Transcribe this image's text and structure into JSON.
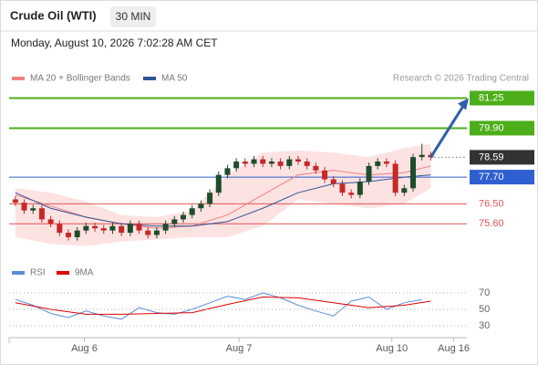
{
  "chart_data": {
    "type": "candlestick",
    "title": "Crude Oil (WTI)",
    "interval": "30 MIN",
    "datetime": "Monday, August 10, 2026 7:02:28 AM CET",
    "credit": "Research © 2026 Trading Central",
    "xlim": [
      -0.5,
      51.5
    ],
    "xticks": [
      {
        "value": 7.8,
        "label": "Aug 6"
      },
      {
        "value": 25.3,
        "label": "Aug 7"
      },
      {
        "value": 42.6,
        "label": "Aug 10"
      },
      {
        "value": 49.6,
        "label": "Aug 16"
      }
    ],
    "ylim": [
      74.3,
      81.6
    ],
    "up_color": "#1e4d2b",
    "down_color": "#c62828",
    "open": [
      76.7,
      76.55,
      76.2,
      76.3,
      75.8,
      75.6,
      75.2,
      75.0,
      75.3,
      75.5,
      75.4,
      75.3,
      75.5,
      75.2,
      75.6,
      75.3,
      75.1,
      75.3,
      75.6,
      75.8,
      76.0,
      76.3,
      76.5,
      77.0,
      77.8,
      78.1,
      78.4,
      78.3,
      78.5,
      78.3,
      78.4,
      78.2,
      78.5,
      78.4,
      78.2,
      78.0,
      77.6,
      77.4,
      77.0,
      76.9,
      77.5,
      78.2,
      78.4,
      78.3,
      77.0,
      77.2,
      78.6,
      78.7
    ],
    "high": [
      76.85,
      76.7,
      76.45,
      76.45,
      75.95,
      75.75,
      75.35,
      75.45,
      75.65,
      75.65,
      75.55,
      75.65,
      75.65,
      75.75,
      75.75,
      75.45,
      75.45,
      75.75,
      75.95,
      76.15,
      76.45,
      76.65,
      77.15,
      77.95,
      78.25,
      78.55,
      78.55,
      78.65,
      78.65,
      78.55,
      78.55,
      78.65,
      78.65,
      78.55,
      78.35,
      78.15,
      77.75,
      77.55,
      77.15,
      77.65,
      78.35,
      78.55,
      78.55,
      78.45,
      77.35,
      78.75,
      79.2,
      78.85
    ],
    "low": [
      76.4,
      76.05,
      76.05,
      75.65,
      75.45,
      75.05,
      74.85,
      74.85,
      75.15,
      75.25,
      75.15,
      75.15,
      75.05,
      75.05,
      75.15,
      74.95,
      74.95,
      75.15,
      75.45,
      75.65,
      75.85,
      76.15,
      76.35,
      76.85,
      77.65,
      77.95,
      78.15,
      78.15,
      78.15,
      78.15,
      78.05,
      78.05,
      78.25,
      78.05,
      77.85,
      77.45,
      77.25,
      76.85,
      76.75,
      76.75,
      77.35,
      78.05,
      78.15,
      76.85,
      76.85,
      77.05,
      78.45,
      78.45
    ],
    "close": [
      76.55,
      76.2,
      76.3,
      75.8,
      75.6,
      75.2,
      75.0,
      75.3,
      75.5,
      75.4,
      75.3,
      75.5,
      75.2,
      75.6,
      75.3,
      75.1,
      75.3,
      75.6,
      75.8,
      76.0,
      76.3,
      76.5,
      77.0,
      77.8,
      78.1,
      78.4,
      78.3,
      78.5,
      78.3,
      78.4,
      78.2,
      78.5,
      78.4,
      78.2,
      78.0,
      77.6,
      77.4,
      77.0,
      76.9,
      77.5,
      78.2,
      78.4,
      78.3,
      77.0,
      77.2,
      78.6,
      78.7,
      78.59
    ],
    "overlays": {
      "x": [
        0,
        4,
        8,
        12,
        16,
        20,
        24,
        28,
        32,
        36,
        40,
        44,
        47
      ],
      "band_color": "#fde2e2",
      "band_upper": [
        77.2,
        77.0,
        76.6,
        76.0,
        75.9,
        76.2,
        77.8,
        78.8,
        78.9,
        78.8,
        78.6,
        79.0,
        79.2
      ],
      "band_lower": [
        75.0,
        74.7,
        74.6,
        74.8,
        74.9,
        75.0,
        75.0,
        75.5,
        76.7,
        76.5,
        76.3,
        76.5,
        77.2
      ],
      "series": [
        {
          "name": "MA 20 + Bollinger Bands",
          "color": "#f08080",
          "values": [
            76.9,
            76.4,
            75.9,
            75.6,
            75.4,
            75.5,
            76.0,
            76.9,
            77.8,
            78.0,
            77.8,
            77.9,
            78.2
          ]
        },
        {
          "name": "MA 50",
          "color": "#2f5597",
          "values": [
            77.0,
            76.3,
            75.9,
            75.6,
            75.5,
            75.5,
            75.7,
            76.3,
            77.0,
            77.4,
            77.5,
            77.7,
            77.8
          ]
        }
      ]
    },
    "levels": [
      {
        "value": 81.25,
        "label": "81.25",
        "color": "#4caf1a",
        "style": "box"
      },
      {
        "value": 79.9,
        "label": "79.90",
        "color": "#4caf1a",
        "style": "box"
      },
      {
        "value": 78.59,
        "label": "78.59",
        "color": "#333333",
        "style": "dotted"
      },
      {
        "value": 77.7,
        "label": "77.70",
        "color": "#2f5fd0",
        "style": "box"
      },
      {
        "value": 76.5,
        "label": "76.50",
        "color": "#e05555",
        "style": "text"
      },
      {
        "value": 75.6,
        "label": "75.60",
        "color": "#e05555",
        "style": "text"
      }
    ],
    "arrow_color": "#2f5fa8",
    "rsi": {
      "ylim": [
        20,
        80
      ],
      "yticks": [
        70,
        50,
        30
      ],
      "series": [
        {
          "name": "RSI",
          "color": "#5b8bd9",
          "x": [
            0,
            2,
            4,
            6,
            8,
            10,
            12,
            14,
            16,
            18,
            20,
            22,
            24,
            26,
            28,
            30,
            32,
            34,
            36,
            38,
            40,
            42,
            44,
            46
          ],
          "values": [
            62,
            55,
            45,
            40,
            48,
            42,
            38,
            52,
            46,
            44,
            50,
            58,
            66,
            62,
            70,
            64,
            55,
            48,
            42,
            60,
            65,
            50,
            58,
            62
          ]
        },
        {
          "name": "9MA",
          "color": "#e00000",
          "x": [
            0,
            4,
            8,
            12,
            16,
            20,
            24,
            28,
            32,
            36,
            40,
            44,
            47
          ],
          "values": [
            58,
            50,
            44,
            44,
            45,
            46,
            56,
            65,
            64,
            58,
            52,
            55,
            60
          ]
        }
      ]
    }
  }
}
